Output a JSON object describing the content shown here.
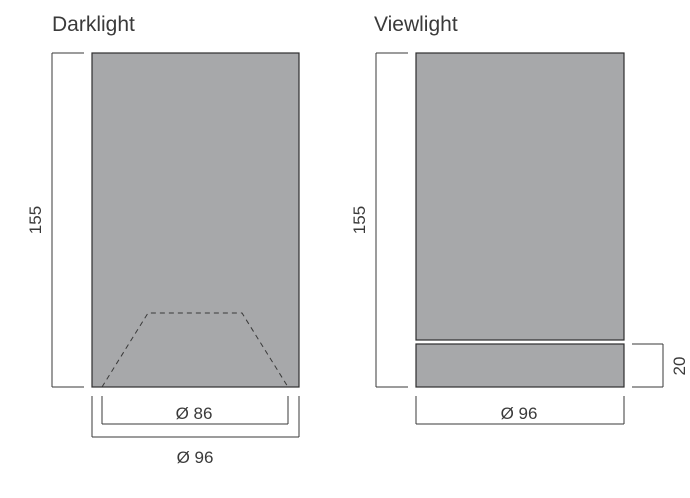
{
  "colors": {
    "body": "#a7a8aa",
    "outline": "#2e2e2e",
    "text": "#3a3a3a",
    "background": "#ffffff"
  },
  "darklight": {
    "title": "Darklight",
    "height_label": "155",
    "inner_diameter_label": "Ø 86",
    "outer_diameter_label": "Ø 96"
  },
  "viewlight": {
    "title": "Viewlight",
    "height_label": "155",
    "ring_height_label": "20",
    "diameter_label": "Ø 96"
  }
}
